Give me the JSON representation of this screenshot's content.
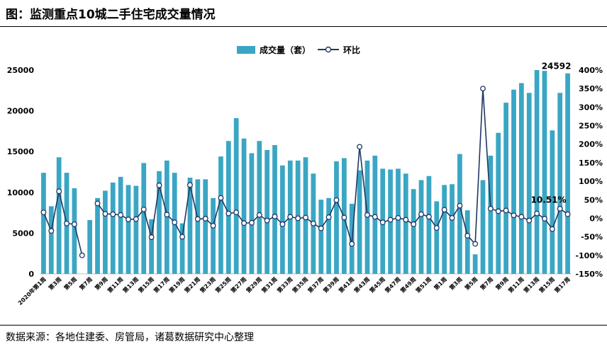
{
  "header": {
    "title": "图：监测重点10城二手住宅成交量情况"
  },
  "footer": {
    "source": "数据来源：各地住建委、房管局，诸葛数据研究中心整理"
  },
  "chart_data": {
    "type": "bar+line",
    "legend": [
      "成交量（套）",
      "环比"
    ],
    "legend_position": "top-center",
    "y_left": {
      "min": 0,
      "max": 25000,
      "ticks": [
        "0",
        "5000",
        "10000",
        "15000",
        "20000",
        "25000"
      ]
    },
    "y_right": {
      "min": -150,
      "max": 400,
      "ticks": [
        "-150%",
        "-100%",
        "-50%",
        "0%",
        "50%",
        "100%",
        "150%",
        "200%",
        "250%",
        "300%",
        "350%",
        "400%"
      ]
    },
    "x_labels": [
      "2020年第1周",
      "第3周",
      "第5周",
      "第7周",
      "第9周",
      "第11周",
      "第13周",
      "第15周",
      "第17周",
      "第19周",
      "第21周",
      "第23周",
      "第25周",
      "第27周",
      "第29周",
      "第31周",
      "第33周",
      "第35周",
      "第37周",
      "第39周",
      "第41周",
      "第43周",
      "第45周",
      "第47周",
      "第49周",
      "第51周",
      "第1周",
      "第3周",
      "第5周",
      "第7周",
      "第9周",
      "第11周",
      "第13周",
      "第15周",
      "第17周"
    ],
    "bar_color": "#3aa6c4",
    "line_color": "#1f3864",
    "bars": [
      12400,
      8300,
      14300,
      12400,
      10500,
      0,
      6600,
      9300,
      10200,
      11200,
      11900,
      10900,
      10800,
      13600,
      6700,
      12600,
      13900,
      12400,
      6200,
      11800,
      11600,
      11600,
      9300,
      14400,
      16300,
      19100,
      16600,
      14800,
      16300,
      15200,
      15800,
      13300,
      13900,
      13900,
      14300,
      12300,
      9100,
      9300,
      13800,
      14200,
      8600,
      12700,
      13900,
      14500,
      12900,
      12800,
      12900,
      12300,
      10400,
      11500,
      12000,
      8900,
      10900,
      11000,
      14700,
      7800,
      2400,
      11500,
      14500,
      17300,
      21000,
      22600,
      23400,
      22200,
      25000,
      24900,
      17600,
      22200,
      24592
    ],
    "mom": [
      16,
      -34,
      73,
      -14,
      -16,
      -100,
      null,
      40,
      12,
      11,
      9,
      -3,
      -2,
      24,
      -51,
      89,
      10,
      -11,
      -50,
      90,
      -2,
      -1,
      -20,
      55,
      13,
      16,
      -13,
      -12,
      9,
      -6,
      5,
      -16,
      4,
      0,
      2,
      -14,
      -27,
      3,
      49,
      2,
      -69,
      193,
      9,
      4,
      -11,
      -4,
      1,
      -4,
      -16,
      11,
      4,
      -26,
      23,
      1,
      34,
      -47,
      -69,
      350,
      26,
      19,
      21,
      8,
      4,
      -6,
      13,
      -1,
      -29,
      26,
      11
    ],
    "data_labels": [
      "24592",
      "10.51%"
    ]
  }
}
